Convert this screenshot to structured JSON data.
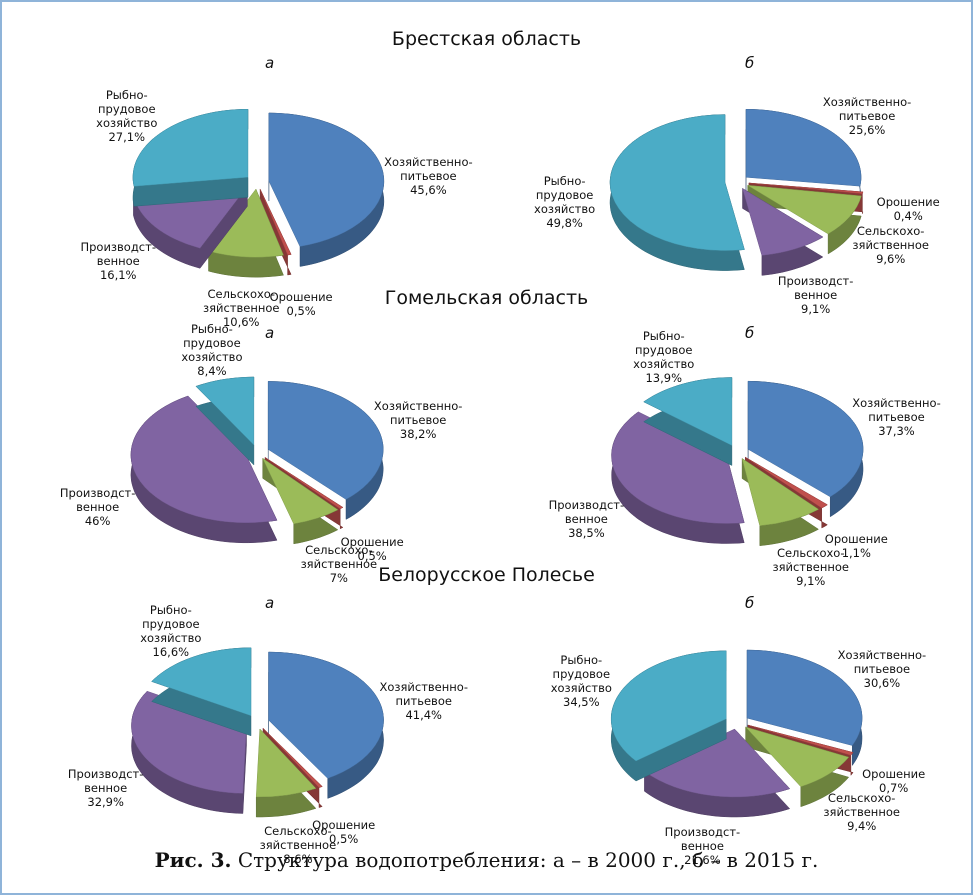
{
  "sections": [
    "Брестская область",
    "Гомельская область",
    "Белорусское Полесье"
  ],
  "caption_label": "Рис. 3.",
  "caption": "Структура водопотребления: а – в 2000 г., б – в 2015 г.",
  "chart_data": [
    {
      "type": "pie",
      "panel": "а",
      "categories": [
        "Хозяйственно-\nпитьевое",
        "Орошение",
        "Сельскохо-\nзяйственное",
        "Производст-\nвенное",
        "Рыбно-\nпрудовое\nхозяйство"
      ],
      "values": [
        45.6,
        0.5,
        10.6,
        16.1,
        27.1
      ],
      "value_labels": [
        "45,6%",
        "0,5%",
        "10,6%",
        "16,1%",
        "27,1%"
      ],
      "colors": [
        "#4f81bd",
        "#c0504d",
        "#9bbb59",
        "#8064a2",
        "#4bacc6"
      ]
    },
    {
      "type": "pie",
      "panel": "б",
      "categories": [
        "Хозяйственно-\nпитьевое",
        "Орошение",
        "Сельскохо-\nзяйственное",
        "Производст-\nвенное",
        "Рыбно-\nпрудовое\nхозяйство"
      ],
      "values": [
        25.6,
        0.4,
        9.6,
        9.1,
        49.8
      ],
      "value_labels": [
        "25,6%",
        "0,4%",
        "9,6%",
        "9,1%",
        "49,8%"
      ],
      "colors": [
        "#4f81bd",
        "#c0504d",
        "#9bbb59",
        "#8064a2",
        "#4bacc6"
      ]
    },
    {
      "type": "pie",
      "panel": "а",
      "categories": [
        "Хозяйственно-\nпитьевое",
        "Орошение",
        "Сельскохо-\nзяйственное",
        "Производст-\nвенное",
        "Рыбно-\nпрудовое\nхозяйство"
      ],
      "values": [
        38.2,
        0.5,
        7,
        46,
        8.4
      ],
      "value_labels": [
        "38,2%",
        "0,5%",
        "7%",
        "46%",
        "8,4%"
      ],
      "colors": [
        "#4f81bd",
        "#c0504d",
        "#9bbb59",
        "#8064a2",
        "#4bacc6"
      ]
    },
    {
      "type": "pie",
      "panel": "б",
      "categories": [
        "Хозяйственно-\nпитьевое",
        "Орошение",
        "Сельскохо-\nзяйственное",
        "Производст-\nвенное",
        "Рыбно-\nпрудовое\nхозяйство"
      ],
      "values": [
        37.3,
        1.1,
        9.1,
        38.5,
        13.9
      ],
      "value_labels": [
        "37,3%",
        "1,1%",
        "9,1%",
        "38,5%",
        "13,9%"
      ],
      "colors": [
        "#4f81bd",
        "#c0504d",
        "#9bbb59",
        "#8064a2",
        "#4bacc6"
      ]
    },
    {
      "type": "pie",
      "panel": "а",
      "categories": [
        "Хозяйственно-\nпитьевое",
        "Орошение",
        "Сельскохо-\nзяйственное",
        "Производст-\nвенное",
        "Рыбно-\nпрудовое\nхозяйство"
      ],
      "values": [
        41.4,
        0.5,
        8.6,
        32.9,
        16.6
      ],
      "value_labels": [
        "41,4%",
        "0,5%",
        "8,6%",
        "32,9%",
        "16,6%"
      ],
      "colors": [
        "#4f81bd",
        "#c0504d",
        "#9bbb59",
        "#8064a2",
        "#4bacc6"
      ]
    },
    {
      "type": "pie",
      "panel": "б",
      "categories": [
        "Хозяйственно-\nпитьевое",
        "Орошение",
        "Сельскохо-\nзяйственное",
        "Производст-\nвенное",
        "Рыбно-\nпрудовое\nхозяйство"
      ],
      "values": [
        30.6,
        0.7,
        9.4,
        21.6,
        34.5
      ],
      "value_labels": [
        "30,6%",
        "0,7%",
        "9,4%",
        "21,6%",
        "34,5%"
      ],
      "colors": [
        "#4f81bd",
        "#c0504d",
        "#9bbb59",
        "#8064a2",
        "#4bacc6"
      ]
    }
  ]
}
